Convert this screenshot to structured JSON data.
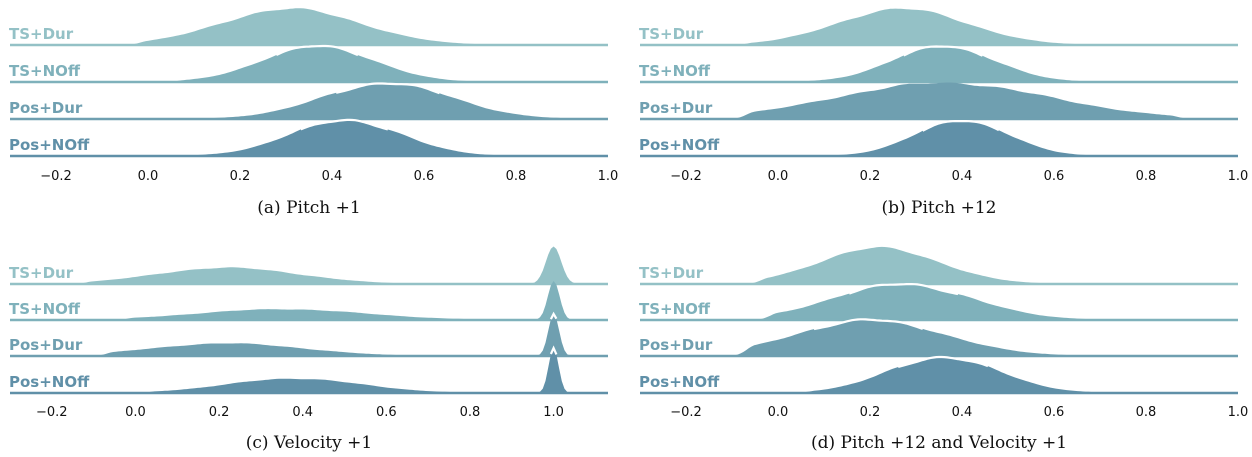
{
  "colors": {
    "TS+Dur": "#94c1c6",
    "TS+NOff": "#7fb1bb",
    "Pos+Dur": "#6f9fb0",
    "Pos+NOff": "#6090a8",
    "highlight": "#ffffff"
  },
  "chart_data": [
    {
      "type": "area",
      "caption": "(a) Pitch +1",
      "xlim": [
        -0.3,
        1.0
      ],
      "xticks": [
        "−0.2",
        "0.0",
        "0.2",
        "0.4",
        "0.6",
        "0.8",
        "1.0"
      ],
      "xtick_values": [
        -0.2,
        0.0,
        0.2,
        0.4,
        0.6,
        0.8,
        1.0
      ],
      "series": [
        {
          "name": "TS+Dur",
          "peaks": [
            {
              "mu": 0.31,
              "sd": 0.15,
              "h": 1.0
            }
          ],
          "range": [
            0.0,
            0.92
          ]
        },
        {
          "name": "TS+NOff",
          "peaks": [
            {
              "mu": 0.37,
              "sd": 0.12,
              "h": 1.0
            }
          ],
          "range": [
            0.08,
            0.85
          ]
        },
        {
          "name": "Pos+Dur",
          "peaks": [
            {
              "mu": 0.52,
              "sd": 0.14,
              "h": 1.0
            }
          ],
          "range": [
            -0.07,
            0.95
          ]
        },
        {
          "name": "Pos+NOff",
          "peaks": [
            {
              "mu": 0.43,
              "sd": 0.12,
              "h": 1.0
            }
          ],
          "range": [
            0.05,
            0.9
          ]
        }
      ],
      "highlight": "TS+NOff,Pos+Dur,Pos+NOff"
    },
    {
      "type": "area",
      "caption": "(b) Pitch +12",
      "xlim": [
        -0.3,
        1.0
      ],
      "xticks": [
        "−0.2",
        "0.0",
        "0.2",
        "0.4",
        "0.6",
        "0.8",
        "1.0"
      ],
      "xtick_values": [
        -0.2,
        0.0,
        0.2,
        0.4,
        0.6,
        0.8,
        1.0
      ],
      "series": [
        {
          "name": "TS+Dur",
          "peaks": [
            {
              "mu": 0.27,
              "sd": 0.14,
              "h": 1.0
            }
          ],
          "range": [
            -0.05,
            0.9
          ]
        },
        {
          "name": "TS+NOff",
          "peaks": [
            {
              "mu": 0.36,
              "sd": 0.11,
              "h": 1.0
            }
          ],
          "range": [
            0.05,
            0.85
          ]
        },
        {
          "name": "Pos+Dur",
          "peaks": [
            {
              "mu": 0.36,
              "sd": 0.23,
              "h": 1.0
            }
          ],
          "range": [
            -0.05,
            0.85
          ]
        },
        {
          "name": "Pos+NOff",
          "peaks": [
            {
              "mu": 0.4,
              "sd": 0.1,
              "h": 1.0
            }
          ],
          "range": [
            0.12,
            0.8
          ]
        }
      ],
      "highlight": "TS+NOff,Pos+NOff"
    },
    {
      "type": "area",
      "caption": "(c) Velocity +1",
      "xlim": [
        -0.3,
        1.13
      ],
      "xticks": [
        "−0.2",
        "0.0",
        "0.2",
        "0.4",
        "0.6",
        "0.8",
        "1.0"
      ],
      "xtick_values": [
        -0.2,
        0.0,
        0.2,
        0.4,
        0.6,
        0.8,
        1.0
      ],
      "series": [
        {
          "name": "TS+Dur",
          "peaks": [
            {
              "mu": 0.22,
              "sd": 0.17,
              "h": 0.45
            },
            {
              "mu": 1.0,
              "sd": 0.018,
              "h": 1.05
            }
          ],
          "range": [
            -0.1,
            1.06
          ]
        },
        {
          "name": "TS+NOff",
          "peaks": [
            {
              "mu": 0.35,
              "sd": 0.2,
              "h": 0.3
            },
            {
              "mu": 1.0,
              "sd": 0.014,
              "h": 1.1
            }
          ],
          "range": [
            0.0,
            1.04
          ]
        },
        {
          "name": "Pos+Dur",
          "peaks": [
            {
              "mu": 0.22,
              "sd": 0.18,
              "h": 0.35
            },
            {
              "mu": 1.0,
              "sd": 0.013,
              "h": 1.15
            }
          ],
          "range": [
            -0.05,
            1.04
          ]
        },
        {
          "name": "Pos+NOff",
          "peaks": [
            {
              "mu": 0.38,
              "sd": 0.16,
              "h": 0.4
            },
            {
              "mu": 1.0,
              "sd": 0.012,
              "h": 1.25
            }
          ],
          "range": [
            0.05,
            1.04
          ]
        }
      ],
      "highlight": "Pos+Dur,Pos+NOff"
    },
    {
      "type": "area",
      "caption": "(d) Pitch +12 and Velocity +1",
      "xlim": [
        -0.3,
        1.0
      ],
      "xticks": [
        "−0.2",
        "0.0",
        "0.2",
        "0.4",
        "0.6",
        "0.8",
        "1.0"
      ],
      "xtick_values": [
        -0.2,
        0.0,
        0.2,
        0.4,
        0.6,
        0.8,
        1.0
      ],
      "series": [
        {
          "name": "TS+Dur",
          "peaks": [
            {
              "mu": 0.22,
              "sd": 0.13,
              "h": 1.0
            }
          ],
          "range": [
            -0.02,
            0.75
          ]
        },
        {
          "name": "TS+NOff",
          "peaks": [
            {
              "mu": 0.27,
              "sd": 0.15,
              "h": 1.0
            }
          ],
          "range": [
            0.0,
            0.8
          ]
        },
        {
          "name": "Pos+Dur",
          "peaks": [
            {
              "mu": 0.2,
              "sd": 0.16,
              "h": 1.0
            }
          ],
          "range": [
            -0.05,
            0.82
          ]
        },
        {
          "name": "Pos+NOff",
          "peaks": [
            {
              "mu": 0.36,
              "sd": 0.12,
              "h": 1.0
            }
          ],
          "range": [
            0.08,
            0.8
          ]
        }
      ],
      "highlight": "TS+NOff,Pos+Dur,Pos+NOff"
    }
  ]
}
